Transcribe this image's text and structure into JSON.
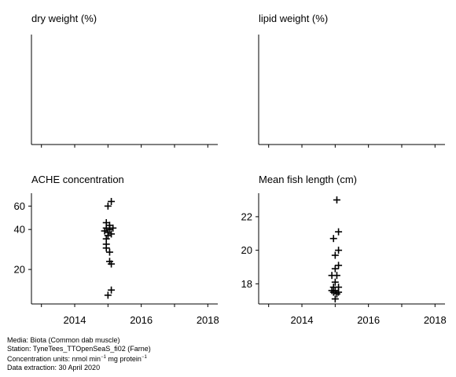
{
  "panels": [
    {
      "title": "dry weight (%)",
      "empty": true
    },
    {
      "title": "lipid weight (%)",
      "empty": true
    },
    {
      "title": "ACHE concentration",
      "empty": false
    },
    {
      "title": "Mean fish length (cm)",
      "empty": false
    }
  ],
  "footer": {
    "media": "Media: Biota (Common dab muscle)",
    "station": "Station: TyneTees_TTOpenSeaS_fi02 (Farne)",
    "units_prefix": "Concentration units:  nmol min",
    "units_exp1": "−1",
    "units_mid": " mg protein",
    "units_exp2": "−1",
    "extraction": "Data extraction: 30 April 2020"
  },
  "chart_data": [
    {
      "type": "scatter",
      "title": "dry weight (%)",
      "xlim": [
        2012.7,
        2018.3
      ],
      "x_ticks": [
        2013,
        2014,
        2015,
        2016,
        2017,
        2018
      ],
      "x_tick_labels": [],
      "series": [
        {
          "values": []
        }
      ]
    },
    {
      "type": "scatter",
      "title": "lipid weight (%)",
      "xlim": [
        2012.7,
        2018.3
      ],
      "x_ticks": [
        2013,
        2014,
        2015,
        2016,
        2017,
        2018
      ],
      "x_tick_labels": [],
      "series": [
        {
          "values": []
        }
      ]
    },
    {
      "type": "scatter",
      "title": "ACHE concentration",
      "scale_y": "log",
      "xlim": [
        2012.7,
        2018.3
      ],
      "ylim": [
        11,
        75
      ],
      "x_ticks": [
        2013,
        2014,
        2015,
        2016,
        2017,
        2018
      ],
      "x_tick_labels": [
        "2014",
        "2016",
        "2018"
      ],
      "x_tick_label_values": [
        2014,
        2016,
        2018
      ],
      "y_ticks": [
        20,
        40,
        60
      ],
      "y_tick_labels": [
        "20",
        "40",
        "60"
      ],
      "series": [
        {
          "values": [
            {
              "x": 2015.1,
              "y": 65
            },
            {
              "x": 2015.0,
              "y": 60
            },
            {
              "x": 2014.95,
              "y": 45
            },
            {
              "x": 2015.05,
              "y": 43
            },
            {
              "x": 2014.95,
              "y": 41
            },
            {
              "x": 2015.15,
              "y": 41
            },
            {
              "x": 2015.05,
              "y": 40
            },
            {
              "x": 2014.9,
              "y": 39
            },
            {
              "x": 2015.0,
              "y": 38
            },
            {
              "x": 2015.1,
              "y": 37
            },
            {
              "x": 2015.0,
              "y": 36
            },
            {
              "x": 2014.95,
              "y": 34
            },
            {
              "x": 2014.95,
              "y": 31
            },
            {
              "x": 2014.95,
              "y": 29
            },
            {
              "x": 2015.05,
              "y": 27
            },
            {
              "x": 2015.05,
              "y": 23
            },
            {
              "x": 2015.1,
              "y": 22
            },
            {
              "x": 2015.1,
              "y": 14
            },
            {
              "x": 2015.0,
              "y": 12.8
            }
          ]
        }
      ]
    },
    {
      "type": "scatter",
      "title": "Mean fish length (cm)",
      "xlim": [
        2012.7,
        2018.3
      ],
      "ylim": [
        16.8,
        23.4
      ],
      "x_ticks": [
        2013,
        2014,
        2015,
        2016,
        2017,
        2018
      ],
      "x_tick_labels": [
        "2014",
        "2016",
        "2018"
      ],
      "x_tick_label_values": [
        2014,
        2016,
        2018
      ],
      "y_ticks": [
        18,
        20,
        22
      ],
      "y_tick_labels": [
        "18",
        "20",
        "22"
      ],
      "series": [
        {
          "values": [
            {
              "x": 2015.05,
              "y": 23.0
            },
            {
              "x": 2015.1,
              "y": 21.1
            },
            {
              "x": 2014.95,
              "y": 20.7
            },
            {
              "x": 2015.1,
              "y": 20.0
            },
            {
              "x": 2015.0,
              "y": 19.7
            },
            {
              "x": 2015.1,
              "y": 19.1
            },
            {
              "x": 2015.0,
              "y": 18.9
            },
            {
              "x": 2014.9,
              "y": 18.5
            },
            {
              "x": 2015.05,
              "y": 18.5
            },
            {
              "x": 2015.0,
              "y": 18.1
            },
            {
              "x": 2014.95,
              "y": 17.8
            },
            {
              "x": 2015.1,
              "y": 17.8
            },
            {
              "x": 2014.9,
              "y": 17.6
            },
            {
              "x": 2015.0,
              "y": 17.6
            },
            {
              "x": 2015.1,
              "y": 17.5
            },
            {
              "x": 2014.95,
              "y": 17.5
            },
            {
              "x": 2015.05,
              "y": 17.4
            },
            {
              "x": 2015.0,
              "y": 17.1
            }
          ]
        }
      ]
    }
  ]
}
